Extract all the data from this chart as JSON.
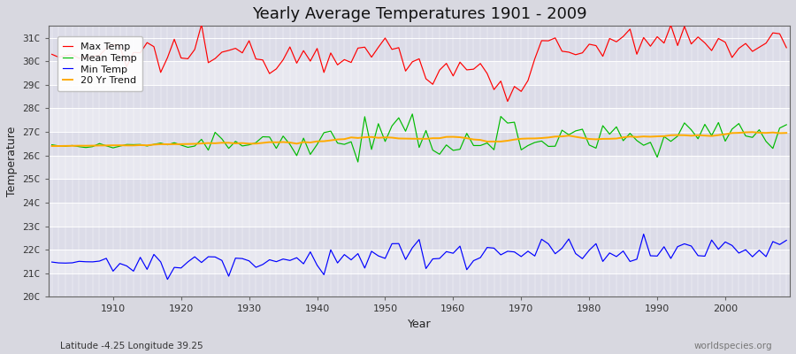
{
  "title": "Yearly Average Temperatures 1901 - 2009",
  "xlabel": "Year",
  "ylabel": "Temperature",
  "start_year": 1901,
  "end_year": 2009,
  "ylim": [
    20.0,
    31.5
  ],
  "yticks": [
    20,
    21,
    22,
    23,
    24,
    25,
    26,
    27,
    28,
    29,
    30,
    31
  ],
  "ytick_labels": [
    "20C",
    "21C",
    "22C",
    "23C",
    "24C",
    "25C",
    "26C",
    "27C",
    "28C",
    "29C",
    "30C",
    "31C"
  ],
  "xticks": [
    1910,
    1920,
    1930,
    1940,
    1950,
    1960,
    1970,
    1980,
    1990,
    2000
  ],
  "legend_labels": [
    "Max Temp",
    "Mean Temp",
    "Min Temp",
    "20 Yr Trend"
  ],
  "colors": {
    "max": "#ff0000",
    "mean": "#00bb00",
    "min": "#0000ff",
    "trend": "#ffaa00"
  },
  "band_colors": [
    "#dcdce8",
    "#e8e8f0"
  ],
  "grid_color": "#ffffff",
  "fig_bg": "#d8d8e0",
  "subtitle": "Latitude -4.25 Longitude 39.25",
  "watermark": "worldspecies.org"
}
